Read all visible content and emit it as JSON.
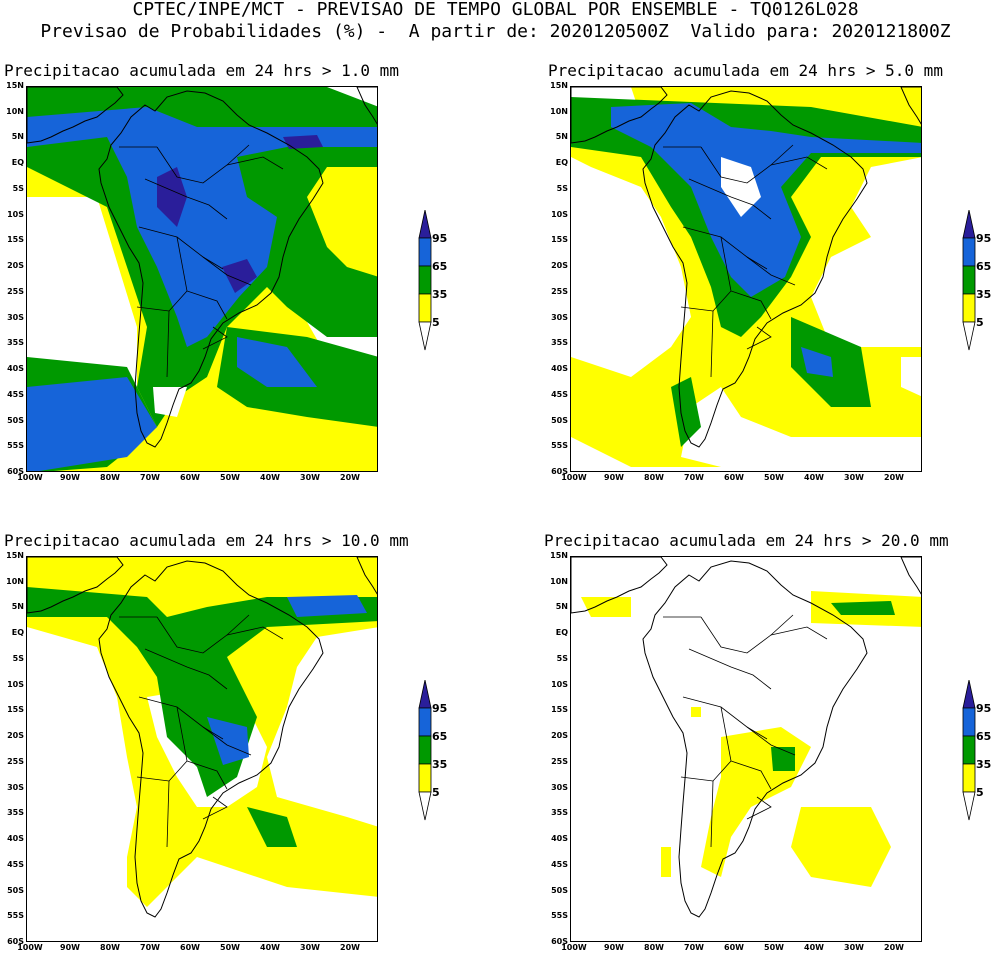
{
  "header": {
    "line1": "CPTEC/INPE/MCT - PREVISAO DE TEMPO GLOBAL POR ENSEMBLE - TQ0126L028",
    "line2": "Previsao de Probabilidades (%) -  A partir de: 2020120500Z  Valido para: 2020121800Z"
  },
  "panels": [
    {
      "title": "Precipitacao acumulada em 24 hrs > 1.0 mm"
    },
    {
      "title": "Precipitacao acumulada em 24 hrs > 5.0 mm"
    },
    {
      "title": "Precipitacao acumulada em 24 hrs > 10.0 mm"
    },
    {
      "title": "Precipitacao acumulada em 24 hrs > 20.0 mm"
    }
  ],
  "axes": {
    "lat_labels": [
      "15N",
      "10N",
      "5N",
      "EQ",
      "5S",
      "10S",
      "15S",
      "20S",
      "25S",
      "30S",
      "35S",
      "40S",
      "45S",
      "50S",
      "55S",
      "60S"
    ],
    "lon_labels": [
      "100W",
      "90W",
      "80W",
      "70W",
      "60W",
      "50W",
      "40W",
      "30W",
      "20W"
    ]
  },
  "legend": {
    "levels": [
      "95",
      "65",
      "35",
      "5"
    ],
    "colors": {
      "yellow": "#ffff00",
      "green": "#009900",
      "blue": "#1664d9",
      "purple": "#2a1e9a"
    }
  }
}
